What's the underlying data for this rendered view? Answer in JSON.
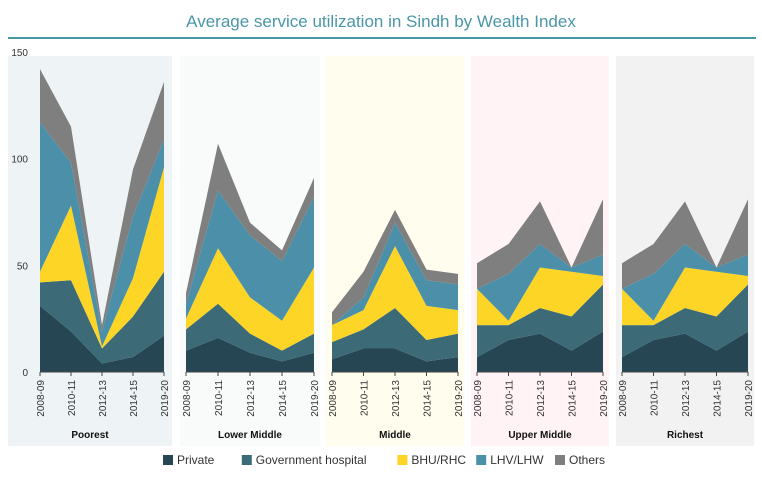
{
  "chart_data": {
    "type": "area",
    "title": "Average service utilization in Sindh by Wealth Index",
    "stacked": true,
    "ylim": [
      0,
      150
    ],
    "yticks": [
      0,
      50,
      100,
      150
    ],
    "x": [
      "2008-09",
      "2010-11",
      "2012-13",
      "2014-15",
      "2019-20"
    ],
    "legend_position": "bottom",
    "colors": {
      "Private": "#264653",
      "Government hospital": "#3d6a77",
      "BHU/RHC": "#fcd526",
      "LHV/LHW": "#4b90a8",
      "Others": "#7f7f7f",
      "title": "#4a97a8",
      "rule": "#4a97a8"
    },
    "panels": [
      {
        "name": "Poorest",
        "background": "#eef3f5",
        "series": [
          {
            "name": "Private",
            "values": [
              31,
              19,
              4,
              7,
              17
            ]
          },
          {
            "name": "Government hospital",
            "values": [
              11,
              24,
              7,
              19,
              30
            ]
          },
          {
            "name": "BHU/RHC",
            "values": [
              5,
              35,
              1,
              18,
              49
            ]
          },
          {
            "name": "LHV/LHW",
            "values": [
              70,
              20,
              7,
              29,
              13
            ]
          },
          {
            "name": "Others",
            "values": [
              25,
              17,
              3,
              22,
              27
            ]
          }
        ]
      },
      {
        "name": "Lower Middle",
        "background": "#f9fbfb",
        "series": [
          {
            "name": "Private",
            "values": [
              10,
              16,
              9,
              5,
              9
            ]
          },
          {
            "name": "Government hospital",
            "values": [
              10,
              16,
              9,
              5,
              9
            ]
          },
          {
            "name": "BHU/RHC",
            "values": [
              5,
              26,
              17,
              14,
              31
            ]
          },
          {
            "name": "LHV/LHW",
            "values": [
              7,
              27,
              29,
              28,
              33
            ]
          },
          {
            "name": "Others",
            "values": [
              5,
              22,
              6,
              5,
              9
            ]
          }
        ]
      },
      {
        "name": "Middle",
        "background": "#fffdee",
        "series": [
          {
            "name": "Private",
            "values": [
              6,
              11,
              11,
              5,
              7
            ]
          },
          {
            "name": "Government hospital",
            "values": [
              8,
              9,
              19,
              10,
              11
            ]
          },
          {
            "name": "BHU/RHC",
            "values": [
              8,
              9,
              29,
              16,
              11
            ]
          },
          {
            "name": "LHV/LHW",
            "values": [
              0,
              6,
              11,
              12,
              12
            ]
          },
          {
            "name": "Others",
            "values": [
              6,
              12,
              6,
              5,
              5
            ]
          }
        ]
      },
      {
        "name": "Upper Middle",
        "background": "#fff3f5",
        "series": [
          {
            "name": "Private",
            "values": [
              7,
              15,
              18,
              10,
              19
            ]
          },
          {
            "name": "Government hospital",
            "values": [
              15,
              7,
              12,
              16,
              22
            ]
          },
          {
            "name": "BHU/RHC",
            "values": [
              17,
              2,
              19,
              21,
              4
            ]
          },
          {
            "name": "LHV/LHW",
            "values": [
              0,
              22,
              11,
              2,
              10
            ]
          },
          {
            "name": "Others",
            "values": [
              12,
              14,
              20,
              0,
              26
            ]
          }
        ]
      },
      {
        "name": "Richest",
        "background": "#f2f2f2",
        "series": [
          {
            "name": "Private",
            "values": [
              7,
              15,
              18,
              10,
              19
            ]
          },
          {
            "name": "Government hospital",
            "values": [
              15,
              7,
              12,
              16,
              22
            ]
          },
          {
            "name": "BHU/RHC",
            "values": [
              17,
              2,
              19,
              21,
              4
            ]
          },
          {
            "name": "LHV/LHW",
            "values": [
              0,
              22,
              11,
              2,
              10
            ]
          },
          {
            "name": "Others",
            "values": [
              12,
              14,
              20,
              0,
              26
            ]
          }
        ]
      }
    ],
    "legend": [
      "Private",
      "Government hospital",
      "BHU/RHC",
      "LHV/LHW",
      "Others"
    ]
  }
}
